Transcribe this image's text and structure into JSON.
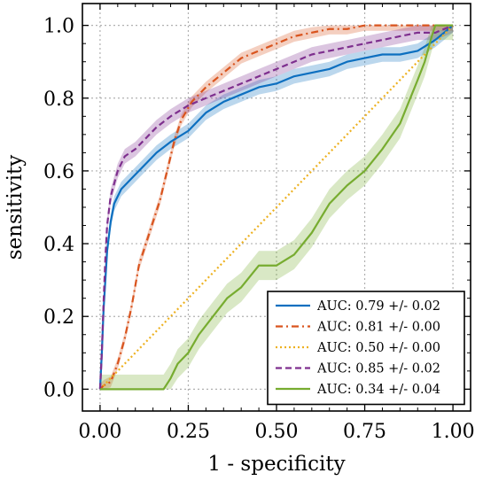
{
  "chart_data": {
    "type": "line",
    "title": "",
    "xlabel": "1 - specificity",
    "ylabel": "sensitivity",
    "xlim": [
      -0.05,
      1.05
    ],
    "ylim": [
      -0.06,
      1.06
    ],
    "xticks": [
      0.0,
      0.25,
      0.5,
      0.75,
      1.0
    ],
    "xtick_labels": [
      "0.00",
      "0.25",
      "0.50",
      "0.75",
      "1.00"
    ],
    "yticks": [
      0.0,
      0.2,
      0.4,
      0.6,
      0.8,
      1.0
    ],
    "ytick_labels": [
      "0.0",
      "0.2",
      "0.4",
      "0.6",
      "0.8",
      "1.0"
    ],
    "grid": true,
    "legend_position": "lower-right",
    "series": [
      {
        "name": "AUC: 0.79 +/- 0.02",
        "color": "#0C6FC0",
        "style": "solid",
        "band": 0.02,
        "x": [
          0.0,
          0.005,
          0.01,
          0.015,
          0.02,
          0.03,
          0.04,
          0.06,
          0.08,
          0.1,
          0.13,
          0.16,
          0.2,
          0.25,
          0.3,
          0.35,
          0.4,
          0.45,
          0.5,
          0.55,
          0.6,
          0.65,
          0.7,
          0.75,
          0.8,
          0.85,
          0.9,
          0.95,
          1.0
        ],
        "y": [
          0.0,
          0.1,
          0.22,
          0.3,
          0.38,
          0.46,
          0.51,
          0.55,
          0.57,
          0.59,
          0.62,
          0.65,
          0.68,
          0.71,
          0.76,
          0.79,
          0.81,
          0.83,
          0.84,
          0.86,
          0.87,
          0.88,
          0.9,
          0.91,
          0.92,
          0.92,
          0.93,
          0.96,
          1.0
        ]
      },
      {
        "name": "AUC: 0.81 +/- 0.00",
        "color": "#D9541E",
        "style": "dashdot",
        "band": 0.015,
        "x": [
          0.0,
          0.01,
          0.03,
          0.05,
          0.07,
          0.09,
          0.11,
          0.13,
          0.15,
          0.17,
          0.19,
          0.21,
          0.23,
          0.26,
          0.3,
          0.35,
          0.4,
          0.45,
          0.5,
          0.55,
          0.6,
          0.65,
          0.7,
          0.75,
          0.8,
          0.85,
          0.9,
          0.95,
          1.0
        ],
        "y": [
          0.0,
          0.01,
          0.02,
          0.07,
          0.14,
          0.23,
          0.34,
          0.4,
          0.46,
          0.52,
          0.6,
          0.68,
          0.74,
          0.79,
          0.83,
          0.87,
          0.91,
          0.93,
          0.95,
          0.97,
          0.98,
          0.99,
          0.99,
          1.0,
          1.0,
          1.0,
          1.0,
          1.0,
          1.0
        ]
      },
      {
        "name": "AUC: 0.50 +/- 0.00",
        "color": "#EDB120",
        "style": "dotted",
        "band": 0.0,
        "x": [
          0.0,
          1.0
        ],
        "y": [
          0.0,
          1.0
        ]
      },
      {
        "name": "AUC: 0.85 +/- 0.02",
        "color": "#7E2F8E",
        "style": "dashed",
        "band": 0.02,
        "x": [
          0.0,
          0.005,
          0.01,
          0.015,
          0.02,
          0.03,
          0.05,
          0.07,
          0.1,
          0.13,
          0.16,
          0.2,
          0.25,
          0.3,
          0.35,
          0.4,
          0.45,
          0.5,
          0.55,
          0.6,
          0.65,
          0.7,
          0.75,
          0.8,
          0.85,
          0.9,
          0.95,
          1.0
        ],
        "y": [
          0.0,
          0.1,
          0.24,
          0.36,
          0.45,
          0.53,
          0.6,
          0.64,
          0.66,
          0.69,
          0.72,
          0.75,
          0.78,
          0.8,
          0.82,
          0.84,
          0.86,
          0.88,
          0.9,
          0.92,
          0.93,
          0.94,
          0.95,
          0.96,
          0.97,
          0.98,
          0.98,
          1.0
        ]
      },
      {
        "name": "AUC: 0.34 +/- 0.04",
        "color": "#77AC30",
        "style": "solid",
        "band": 0.04,
        "x": [
          0.0,
          0.05,
          0.1,
          0.15,
          0.18,
          0.2,
          0.22,
          0.25,
          0.28,
          0.32,
          0.36,
          0.4,
          0.45,
          0.5,
          0.55,
          0.6,
          0.65,
          0.7,
          0.75,
          0.8,
          0.85,
          0.9,
          0.92,
          0.94,
          0.95,
          1.0
        ],
        "y": [
          0.0,
          0.0,
          0.0,
          0.0,
          0.0,
          0.03,
          0.07,
          0.1,
          0.15,
          0.2,
          0.25,
          0.28,
          0.34,
          0.34,
          0.37,
          0.43,
          0.51,
          0.56,
          0.6,
          0.66,
          0.73,
          0.85,
          0.9,
          0.97,
          1.0,
          1.0
        ]
      }
    ]
  }
}
